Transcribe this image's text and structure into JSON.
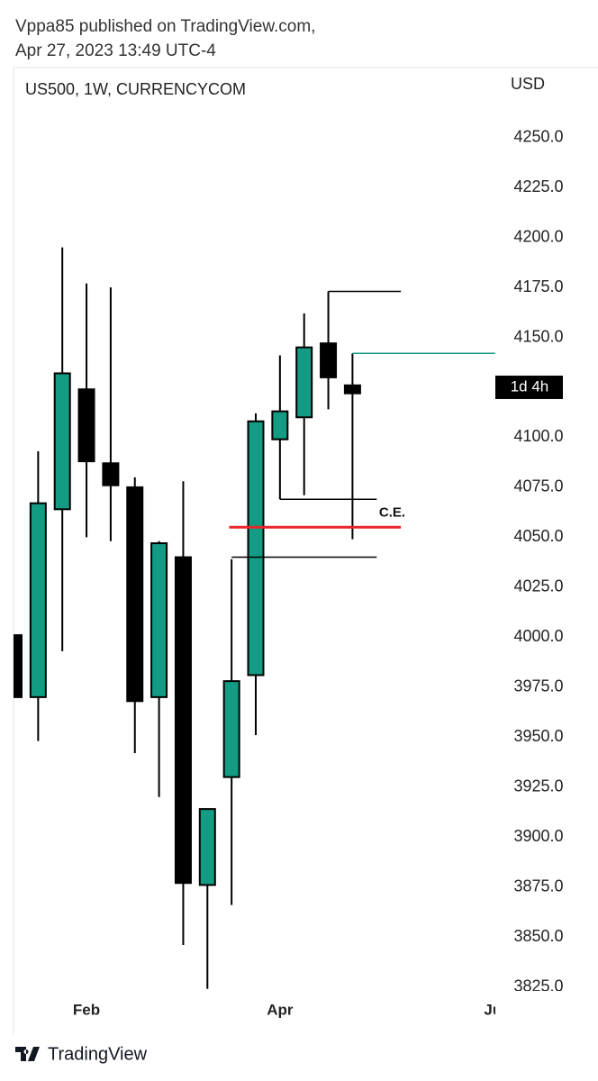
{
  "header": {
    "line1": "Vppa85 published on TradingView.com,",
    "line2": "Apr 27, 2023 13:49 UTC-4"
  },
  "footer": {
    "brand": "TradingView"
  },
  "chart_data": {
    "type": "candlestick",
    "title": "US500, 1W, CURRENCYCOM",
    "y_axis_label": "USD",
    "categories": [
      null,
      null,
      null,
      "Feb",
      null,
      null,
      null,
      null,
      null,
      null,
      null,
      "Apr",
      null,
      null,
      null,
      null,
      null,
      null,
      null,
      null,
      "Jun"
    ],
    "open": [
      4001,
      3970,
      4064,
      4124,
      4087,
      4075,
      3970,
      4040,
      3876,
      3930,
      3981,
      4099,
      4110,
      4147,
      4126,
      null,
      null,
      null,
      null,
      null,
      null
    ],
    "high": [
      4001,
      4093,
      4195,
      4177,
      4175,
      4080,
      4048,
      4078,
      3914,
      4039,
      4112,
      4141,
      4162,
      4173,
      4142,
      null,
      null,
      null,
      null,
      null,
      null
    ],
    "low": [
      3970,
      3948,
      3993,
      4050,
      4048,
      3942,
      3920,
      3846,
      3824,
      3866,
      3951,
      4069,
      4071,
      4114,
      4049,
      null,
      null,
      null,
      null,
      null,
      null
    ],
    "close": [
      3970,
      4067,
      4132,
      4088,
      4076,
      3968,
      4047,
      3877,
      3914,
      3978,
      4108,
      4113,
      4145,
      4130,
      4122,
      null,
      null,
      null,
      null,
      null,
      null
    ],
    "up_color": "#139b83",
    "down_color": "#000000",
    "ylim": [
      3823,
      4285
    ],
    "yticks": [
      {
        "value": 3825,
        "label": "3825.0"
      },
      {
        "value": 3850,
        "label": "3850.0"
      },
      {
        "value": 3875,
        "label": "3875.0"
      },
      {
        "value": 3900,
        "label": "3900.0"
      },
      {
        "value": 3925,
        "label": "3925.0"
      },
      {
        "value": 3950,
        "label": "3950.0"
      },
      {
        "value": 3975,
        "label": "3975.0"
      },
      {
        "value": 4000,
        "label": "4000.0"
      },
      {
        "value": 4025,
        "label": "4025.0"
      },
      {
        "value": 4050,
        "label": "4050.0"
      },
      {
        "value": 4075,
        "label": "4075.0"
      },
      {
        "value": 4100,
        "label": "4100.0"
      },
      {
        "value": 4125,
        "label": "4125.0"
      },
      {
        "value": 4150,
        "label": "4150.0"
      },
      {
        "value": 4175,
        "label": "4175.0"
      },
      {
        "value": 4200,
        "label": "4200.0"
      },
      {
        "value": 4225,
        "label": "4225.0"
      },
      {
        "value": 4250,
        "label": "4250.0"
      }
    ],
    "levels": [
      {
        "value": 4173,
        "from": 13,
        "to": 16,
        "color": "#000000"
      },
      {
        "value": 4142,
        "from": 14,
        "to": 19.9,
        "color": "#139b83"
      },
      {
        "value": 4069,
        "from": 11,
        "to": 15,
        "color": "#000000"
      },
      {
        "value": 4055,
        "from": 8.9,
        "to": 16,
        "color": "#e8262b"
      },
      {
        "value": 4040,
        "from": 9,
        "to": 15,
        "color": "#000000"
      }
    ],
    "annotation": {
      "text": "C.E.",
      "value": 4062,
      "at": 15.1
    },
    "countdown": {
      "text": "1d 4h",
      "value": 4125
    }
  }
}
